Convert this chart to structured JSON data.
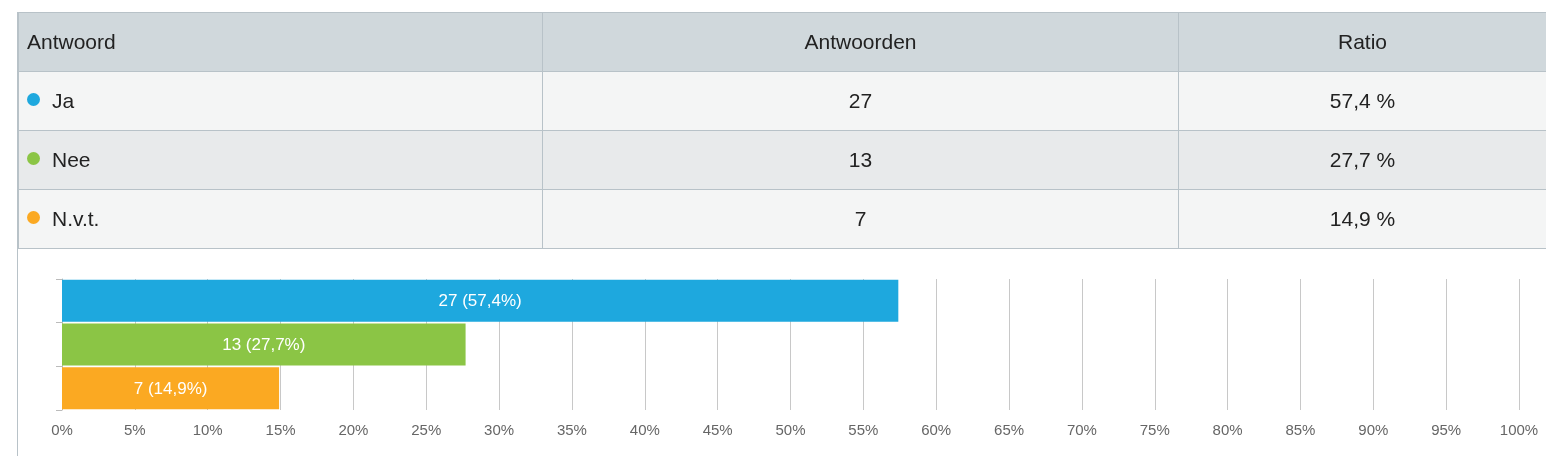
{
  "chart_data": {
    "type": "bar",
    "orientation": "horizontal",
    "categories": [
      null,
      null,
      null
    ],
    "values": [
      57.4,
      27.7,
      14.9
    ],
    "colors": [
      "#1ea8de",
      "#8bc545",
      "#fba922"
    ],
    "value_labels": [
      "27 (57,4%)",
      "13 (27,7%)",
      "7 (14,9%)"
    ],
    "annotations": [
      "Antwoord",
      "Antwoorden",
      "Ratio",
      "Ja",
      "27",
      "57,4 %",
      "Nee",
      "13",
      "27,7 %",
      "N.v.t.",
      "7",
      "14,9 %"
    ],
    "xlim": [
      0,
      100
    ],
    "xticks": [
      {
        "value": 0,
        "label": "0%"
      },
      {
        "value": 5,
        "label": "5%"
      },
      {
        "value": 10,
        "label": "10%"
      },
      {
        "value": 15,
        "label": "15%"
      },
      {
        "value": 20,
        "label": "20%"
      },
      {
        "value": 25,
        "label": "25%"
      },
      {
        "value": 30,
        "label": "30%"
      },
      {
        "value": 35,
        "label": "35%"
      },
      {
        "value": 40,
        "label": "40%"
      },
      {
        "value": 45,
        "label": "45%"
      },
      {
        "value": 50,
        "label": "50%"
      },
      {
        "value": 55,
        "label": "55%"
      },
      {
        "value": 60,
        "label": "60%"
      },
      {
        "value": 65,
        "label": "65%"
      },
      {
        "value": 70,
        "label": "70%"
      },
      {
        "value": 75,
        "label": "75%"
      },
      {
        "value": 80,
        "label": "80%"
      },
      {
        "value": 85,
        "label": "85%"
      },
      {
        "value": 90,
        "label": "90%"
      },
      {
        "value": 95,
        "label": "95%"
      },
      {
        "value": 100,
        "label": "100%"
      }
    ],
    "grid": "x",
    "tick_labels": "x"
  }
}
